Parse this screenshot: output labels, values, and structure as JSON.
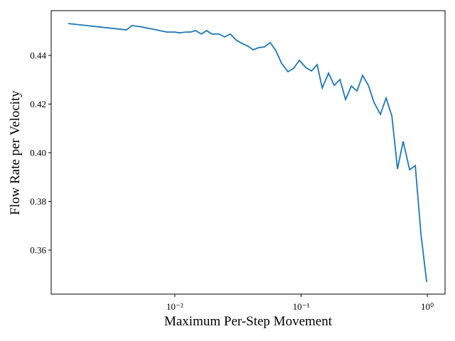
{
  "chart_data": {
    "type": "line",
    "xlabel": "Maximum Per-Step Movement",
    "ylabel": "Flow Rate per Velocity",
    "xscale": "log",
    "color": "#1f77b4",
    "xlim": [
      0.00105,
      1.38
    ],
    "ylim": [
      0.3419,
      0.4584
    ],
    "xticks": [
      {
        "value": 0.01,
        "label": "10⁻²"
      },
      {
        "value": 0.1,
        "label": "10⁻¹"
      },
      {
        "value": 1,
        "label": "10⁰"
      }
    ],
    "yticks": [
      {
        "value": 0.36,
        "label": "0.36"
      },
      {
        "value": 0.38,
        "label": "0.38"
      },
      {
        "value": 0.4,
        "label": "0.40"
      },
      {
        "value": 0.42,
        "label": "0.42"
      },
      {
        "value": 0.44,
        "label": "0.44"
      }
    ],
    "x": [
      0.00143,
      0.00414,
      0.00459,
      0.00551,
      0.00867,
      0.01,
      0.0109,
      0.0123,
      0.0133,
      0.0146,
      0.0162,
      0.0179,
      0.0196,
      0.0224,
      0.0248,
      0.0275,
      0.0305,
      0.0339,
      0.038,
      0.0417,
      0.0462,
      0.0513,
      0.0569,
      0.0631,
      0.07,
      0.0787,
      0.0873,
      0.0969,
      0.109,
      0.121,
      0.134,
      0.147,
      0.165,
      0.183,
      0.203,
      0.225,
      0.25,
      0.277,
      0.307,
      0.341,
      0.378,
      0.425,
      0.471,
      0.523,
      0.58,
      0.643,
      0.723,
      0.802,
      0.89,
      0.987
    ],
    "values": [
      0.4531,
      0.4505,
      0.4523,
      0.4517,
      0.4496,
      0.4496,
      0.4493,
      0.4496,
      0.4496,
      0.4502,
      0.4488,
      0.4502,
      0.4488,
      0.4488,
      0.4476,
      0.4488,
      0.4464,
      0.445,
      0.4438,
      0.4423,
      0.4432,
      0.4435,
      0.4453,
      0.442,
      0.4368,
      0.4333,
      0.4347,
      0.438,
      0.435,
      0.4336,
      0.4362,
      0.4266,
      0.4327,
      0.4277,
      0.4301,
      0.4219,
      0.4274,
      0.4254,
      0.4318,
      0.4277,
      0.4207,
      0.4158,
      0.4225,
      0.4152,
      0.3933,
      0.4047,
      0.393,
      0.3947,
      0.3664,
      0.3469
    ]
  }
}
